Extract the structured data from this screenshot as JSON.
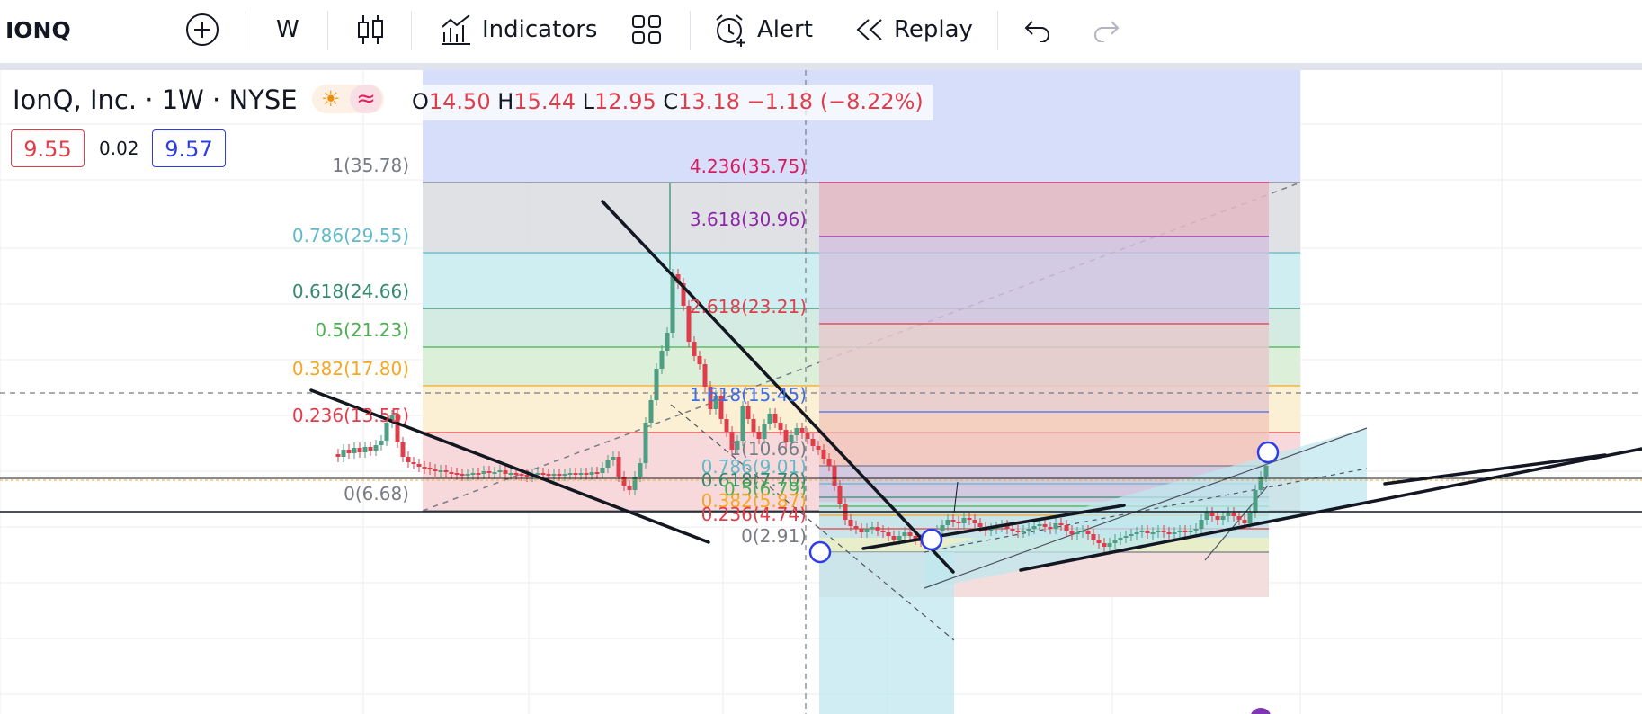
{
  "toolbar": {
    "symbol": "IONQ",
    "interval": "W",
    "indicators_label": "Indicators",
    "alert_label": "Alert",
    "replay_label": "Replay"
  },
  "legend": {
    "title": "IonQ, Inc. · 1W · NYSE",
    "open_label": "O",
    "open": "14.50",
    "high_label": "H",
    "high": "15.44",
    "low_label": "L",
    "low": "12.95",
    "close_label": "C",
    "close": "13.18",
    "change": "−1.18 (−8.22%)",
    "indicator_left": "9.55",
    "indicator_mid": "0.02",
    "indicator_right": "9.57"
  },
  "fib_retracement_labels": [
    "1(35.78)",
    "0.786(29.55)",
    "0.618(24.66)",
    "0.5(21.23)",
    "0.382(17.80)",
    "0.236(13.55)",
    "0(6.68)"
  ],
  "fib_extension_labels": [
    "4.236(35.75)",
    "3.618(30.96)",
    "2.618(23.21)",
    "1.618(15.45)",
    "1(10.66)",
    "0.786(9.01)",
    "0.618(7.70)",
    "0.5(6.79)",
    "0.382(5.87)",
    "0.236(4.74)",
    "0(2.91)"
  ],
  "colors": {
    "fib_1": "#787b86",
    "fib_0786": "#5fb9c9",
    "fib_0618": "#358a6b",
    "fib_05": "#4caf50",
    "fib_0382": "#f5a623",
    "fib_0236": "#e03d4b",
    "ext_4236": "#d81b60",
    "ext_3618": "#8e24aa",
    "ext_2618": "#e03d4b",
    "ext_1618": "#3d6eea",
    "candle_up": "#4d9e82",
    "candle_down": "#e03d4b",
    "toolbar_sep": "#e0e3eb",
    "text": "#131722"
  },
  "icons": [
    "plus-circle-icon",
    "candles-icon",
    "indicators-icon",
    "layouts-icon",
    "alarm-icon",
    "replay-icon",
    "undo-icon",
    "redo-icon",
    "sun-icon",
    "wave-icon"
  ]
}
